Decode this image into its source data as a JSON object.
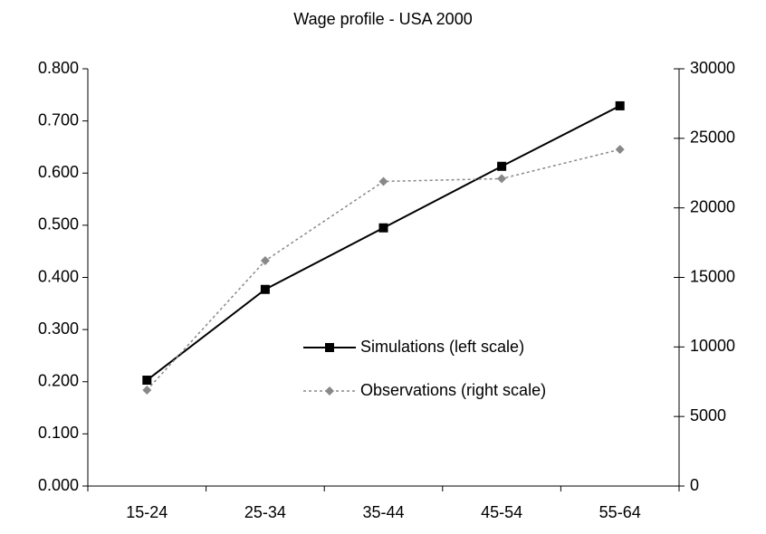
{
  "chart_data": {
    "type": "line",
    "title": "Wage profile - USA 2000",
    "categories": [
      "15-24",
      "25-34",
      "35-44",
      "45-54",
      "55-64"
    ],
    "series": [
      {
        "name": "Simulations (left scale)",
        "color": "#000000",
        "marker": "square",
        "dash": "solid",
        "values": [
          0.203,
          0.377,
          0.495,
          0.613,
          0.729
        ]
      },
      {
        "name": "Observations (right scale)",
        "color": "#888888",
        "marker": "diamond",
        "dash": "dotted",
        "axis": "y2",
        "values": [
          6900,
          16200,
          21900,
          22100,
          24200
        ]
      }
    ],
    "ylim": [
      0,
      0.8
    ],
    "yticks": [
      {
        "value": 0,
        "label": "0.000"
      },
      {
        "value": 0.1,
        "label": "0.100"
      },
      {
        "value": 0.2,
        "label": "0.200"
      },
      {
        "value": 0.3,
        "label": "0.300"
      },
      {
        "value": 0.4,
        "label": "0.400"
      },
      {
        "value": 0.5,
        "label": "0.500"
      },
      {
        "value": 0.6,
        "label": "0.600"
      },
      {
        "value": 0.7,
        "label": "0.700"
      },
      {
        "value": 0.8,
        "label": "0.800"
      }
    ],
    "y2lim": [
      0,
      30000
    ],
    "y2ticks": [
      0,
      5000,
      10000,
      15000,
      20000,
      25000,
      30000
    ],
    "grid": false
  }
}
